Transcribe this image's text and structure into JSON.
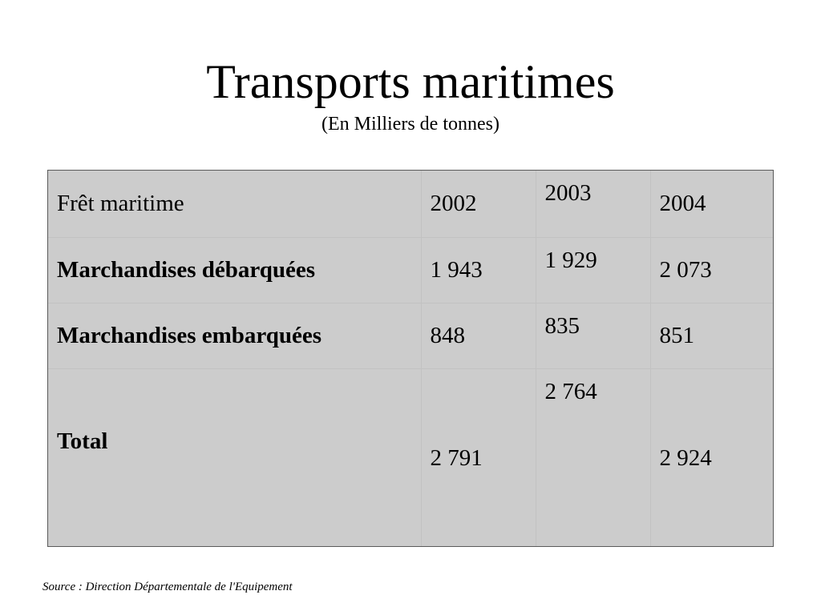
{
  "title": "Transports maritimes",
  "subtitle": "(En Milliers de tonnes)",
  "table": {
    "header": {
      "label": "Frêt maritime",
      "years": [
        "2002",
        "2003",
        "2004"
      ]
    },
    "rows": [
      {
        "label": "Marchandises débarquées",
        "values": [
          "1 943",
          "1 929",
          "2 073"
        ]
      },
      {
        "label": "Marchandises embarquées",
        "values": [
          "848",
          "835",
          "851"
        ]
      },
      {
        "label": "Total",
        "values": [
          "2 791",
          "2 764",
          "2 924"
        ]
      }
    ]
  },
  "source": "Source : Direction Départementale de l'Equipement",
  "colors": {
    "table_background": "#cccccc",
    "table_border": "#5a5a5a",
    "cell_divider": "#c2c2c2"
  }
}
